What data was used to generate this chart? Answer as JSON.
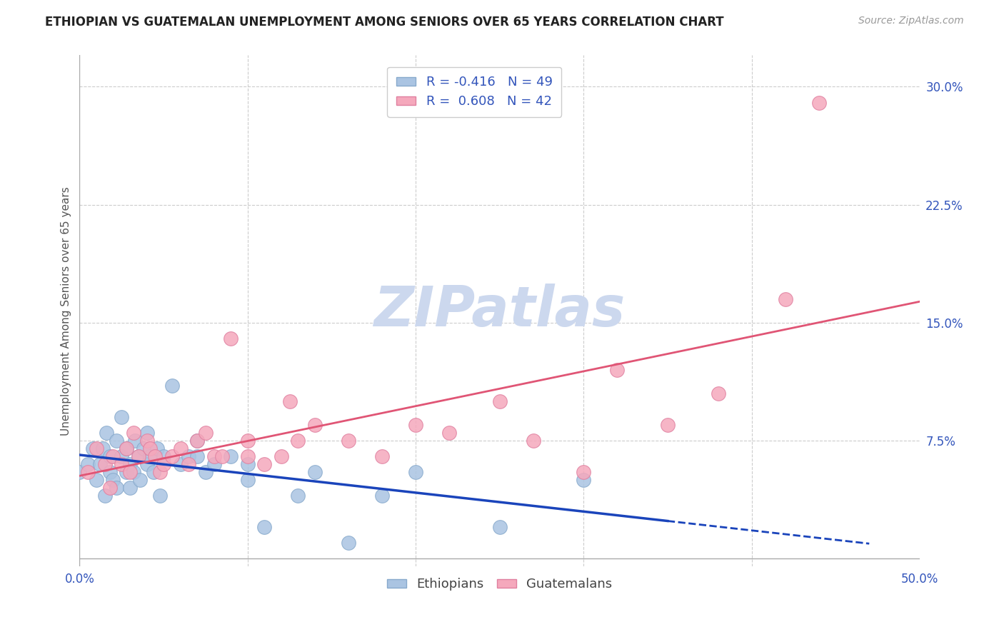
{
  "title": "ETHIOPIAN VS GUATEMALAN UNEMPLOYMENT AMONG SENIORS OVER 65 YEARS CORRELATION CHART",
  "source": "Source: ZipAtlas.com",
  "ylabel": "Unemployment Among Seniors over 65 years",
  "xlim": [
    0.0,
    0.5
  ],
  "ylim": [
    -0.005,
    0.32
  ],
  "xtick_vals": [
    0.0,
    0.1,
    0.2,
    0.3,
    0.4,
    0.5
  ],
  "xtick_labels": [
    "0.0%",
    "",
    "",
    "",
    "",
    "50.0%"
  ],
  "ytick_vals": [
    0.0,
    0.075,
    0.15,
    0.225,
    0.3
  ],
  "ytick_labels": [
    "",
    "7.5%",
    "15.0%",
    "22.5%",
    "30.0%"
  ],
  "ethiopian_R": -0.416,
  "ethiopian_N": 49,
  "guatemalan_R": 0.608,
  "guatemalan_N": 42,
  "ethiopian_color": "#aac4e2",
  "guatemalan_color": "#f5a8bc",
  "ethiopian_edge": "#88aacc",
  "guatemalan_edge": "#e080a0",
  "trend_eth_color": "#1a44bb",
  "trend_guat_color": "#e05575",
  "watermark_color": "#ccd8ee",
  "bg_color": "#ffffff",
  "legend_text_color": "#3355bb",
  "eth_x": [
    0.0,
    0.005,
    0.008,
    0.01,
    0.012,
    0.014,
    0.015,
    0.016,
    0.018,
    0.018,
    0.02,
    0.022,
    0.022,
    0.025,
    0.025,
    0.028,
    0.028,
    0.03,
    0.03,
    0.032,
    0.033,
    0.035,
    0.036,
    0.038,
    0.04,
    0.04,
    0.042,
    0.044,
    0.046,
    0.048,
    0.05,
    0.055,
    0.06,
    0.065,
    0.07,
    0.07,
    0.075,
    0.08,
    0.09,
    0.1,
    0.1,
    0.11,
    0.13,
    0.14,
    0.16,
    0.18,
    0.2,
    0.25,
    0.3
  ],
  "eth_y": [
    0.055,
    0.06,
    0.07,
    0.05,
    0.06,
    0.07,
    0.04,
    0.08,
    0.055,
    0.065,
    0.05,
    0.075,
    0.045,
    0.065,
    0.09,
    0.055,
    0.07,
    0.06,
    0.045,
    0.055,
    0.075,
    0.065,
    0.05,
    0.07,
    0.06,
    0.08,
    0.065,
    0.055,
    0.07,
    0.04,
    0.065,
    0.11,
    0.06,
    0.065,
    0.065,
    0.075,
    0.055,
    0.06,
    0.065,
    0.05,
    0.06,
    0.02,
    0.04,
    0.055,
    0.01,
    0.04,
    0.055,
    0.02,
    0.05
  ],
  "guat_x": [
    0.005,
    0.01,
    0.015,
    0.018,
    0.02,
    0.025,
    0.028,
    0.03,
    0.032,
    0.035,
    0.04,
    0.042,
    0.045,
    0.048,
    0.05,
    0.055,
    0.06,
    0.065,
    0.07,
    0.075,
    0.08,
    0.085,
    0.09,
    0.1,
    0.1,
    0.11,
    0.12,
    0.125,
    0.13,
    0.14,
    0.16,
    0.18,
    0.2,
    0.22,
    0.25,
    0.27,
    0.3,
    0.32,
    0.35,
    0.38,
    0.42,
    0.44
  ],
  "guat_y": [
    0.055,
    0.07,
    0.06,
    0.045,
    0.065,
    0.06,
    0.07,
    0.055,
    0.08,
    0.065,
    0.075,
    0.07,
    0.065,
    0.055,
    0.06,
    0.065,
    0.07,
    0.06,
    0.075,
    0.08,
    0.065,
    0.065,
    0.14,
    0.065,
    0.075,
    0.06,
    0.065,
    0.1,
    0.075,
    0.085,
    0.075,
    0.065,
    0.085,
    0.08,
    0.1,
    0.075,
    0.055,
    0.12,
    0.085,
    0.105,
    0.165,
    0.29
  ],
  "eth_trend_x0": 0.0,
  "eth_trend_x1": 0.35,
  "eth_trend_dash_x0": 0.35,
  "eth_trend_dash_x1": 0.47,
  "guat_trend_x0": 0.0,
  "guat_trend_x1": 0.5
}
